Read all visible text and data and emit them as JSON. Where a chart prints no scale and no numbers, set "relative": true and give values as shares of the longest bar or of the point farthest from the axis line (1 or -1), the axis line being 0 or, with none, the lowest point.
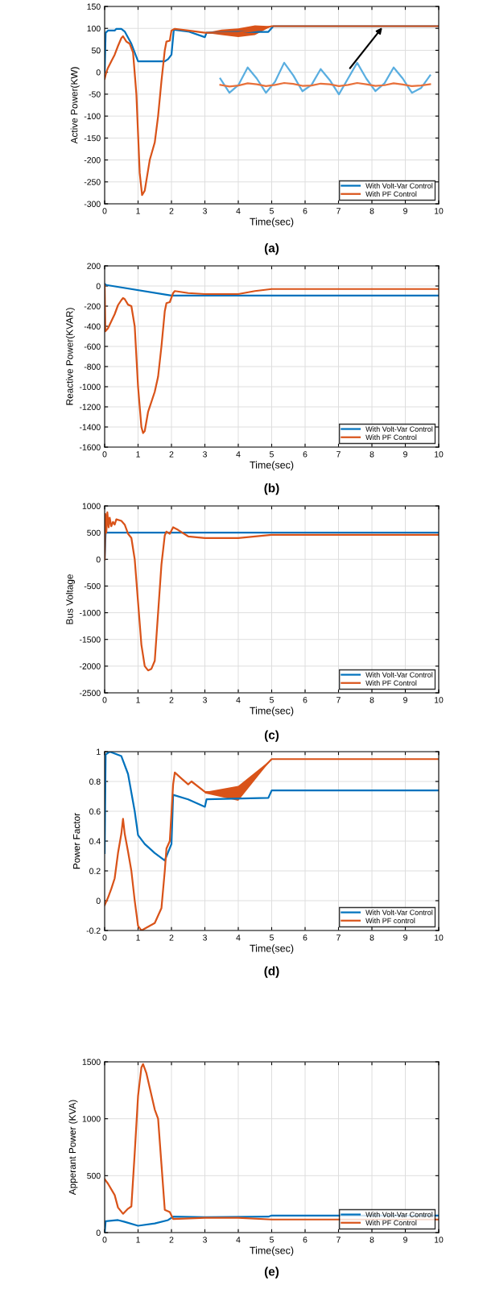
{
  "chart_data": [
    {
      "type": "line",
      "ylabel": "Active Power(KW)",
      "xlabel": "Time(sec)",
      "annotations": [
        "(a)"
      ],
      "xlim": [
        0,
        10
      ],
      "xticks": [
        0,
        1,
        2,
        3,
        4,
        5,
        6,
        7,
        8,
        9,
        10
      ],
      "ylim": [
        -300,
        150
      ],
      "yticks": [
        -300,
        -250,
        -200,
        -150,
        -100,
        -50,
        0,
        50,
        100,
        150
      ],
      "grid": true,
      "legend": "bottom right",
      "series": [
        {
          "name": "With Volt-Var Control",
          "color": "#0072bd",
          "x": [
            0,
            0.03,
            0.1,
            0.3,
            0.35,
            0.5,
            0.6,
            0.8,
            1.0,
            1.5,
            1.8,
            1.9,
            2.0,
            2.07,
            2.5,
            3.0,
            3.05,
            4.0,
            4.9,
            5.05,
            10
          ],
          "values": [
            0,
            90,
            95,
            95,
            99,
            99,
            93,
            65,
            25,
            25,
            25,
            30,
            40,
            97,
            93,
            80,
            90,
            92,
            92,
            105,
            105
          ]
        },
        {
          "name": "With PF Control",
          "color": "#d95319",
          "x": [
            0,
            0.05,
            0.1,
            0.2,
            0.3,
            0.4,
            0.5,
            0.55,
            0.65,
            0.75,
            0.85,
            0.95,
            1.05,
            1.12,
            1.2,
            1.35,
            1.5,
            1.6,
            1.7,
            1.8,
            1.85,
            1.95,
            2.0,
            2.1,
            2.5,
            3.0,
            3.5,
            4.0,
            4.5,
            5.0,
            10
          ],
          "values": [
            -15,
            0,
            10,
            25,
            40,
            60,
            78,
            82,
            70,
            65,
            45,
            -50,
            -230,
            -280,
            -270,
            -200,
            -160,
            -100,
            -20,
            50,
            70,
            72,
            95,
            99,
            95,
            90,
            90,
            90,
            95,
            105,
            105
          ],
          "lower": [
            null,
            null,
            null,
            null,
            null,
            null,
            null,
            null,
            null,
            null,
            null,
            null,
            null,
            null,
            null,
            null,
            null,
            null,
            null,
            null,
            null,
            null,
            null,
            null,
            null,
            90,
            85,
            80,
            85,
            105,
            null
          ],
          "upper": [
            null,
            null,
            null,
            null,
            null,
            null,
            null,
            null,
            null,
            null,
            null,
            null,
            null,
            null,
            null,
            null,
            null,
            null,
            null,
            null,
            null,
            null,
            null,
            null,
            null,
            90,
            97,
            100,
            107,
            105,
            null
          ]
        }
      ]
    },
    {
      "type": "line",
      "ylabel": "Reactive Power(KVAR)",
      "xlabel": "Time(sec)",
      "annotations": [
        "(b)"
      ],
      "xlim": [
        0,
        10
      ],
      "xticks": [
        0,
        1,
        2,
        3,
        4,
        5,
        6,
        7,
        8,
        9,
        10
      ],
      "ylim": [
        -1600,
        200
      ],
      "yticks": [
        -1600,
        -1400,
        -1200,
        -1000,
        -800,
        -600,
        -400,
        -200,
        0,
        200
      ],
      "grid": true,
      "legend": "bottom right",
      "series": [
        {
          "name": "With Volt-Var Control",
          "color": "#0072bd",
          "x": [
            0,
            0.05,
            2.0,
            10
          ],
          "values": [
            20,
            10,
            -95,
            -95
          ]
        },
        {
          "name": "With PF Control",
          "color": "#d95319",
          "x": [
            0,
            0.02,
            0.1,
            0.2,
            0.3,
            0.4,
            0.5,
            0.55,
            0.6,
            0.7,
            0.8,
            0.9,
            1.0,
            1.1,
            1.15,
            1.2,
            1.3,
            1.5,
            1.6,
            1.7,
            1.8,
            1.85,
            1.95,
            2.05,
            2.1,
            2.5,
            3.0,
            4.0,
            4.5,
            5.0,
            10
          ],
          "values": [
            10,
            -450,
            -420,
            -350,
            -280,
            -190,
            -140,
            -120,
            -130,
            -185,
            -200,
            -400,
            -1000,
            -1400,
            -1460,
            -1440,
            -1250,
            -1050,
            -900,
            -600,
            -250,
            -170,
            -160,
            -70,
            -50,
            -70,
            -80,
            -80,
            -50,
            -30,
            -30
          ]
        }
      ]
    },
    {
      "type": "line",
      "ylabel": "Bus Voltage",
      "xlabel": "Time(sec)",
      "annotations": [
        "(c)"
      ],
      "xlim": [
        0,
        10
      ],
      "xticks": [
        0,
        1,
        2,
        3,
        4,
        5,
        6,
        7,
        8,
        9,
        10
      ],
      "ylim": [
        -2500,
        1000
      ],
      "yticks": [
        -2500,
        -2000,
        -1500,
        -1000,
        -500,
        0,
        500,
        1000
      ],
      "grid": true,
      "legend": "bottom right",
      "series": [
        {
          "name": "With Volt-Var Control",
          "color": "#0072bd",
          "x": [
            0,
            0.03,
            10
          ],
          "values": [
            0,
            500,
            500
          ]
        },
        {
          "name": "With PF Control",
          "color": "#d95319",
          "x": [
            0,
            0.02,
            0.05,
            0.08,
            0.12,
            0.15,
            0.2,
            0.25,
            0.3,
            0.35,
            0.5,
            0.6,
            0.7,
            0.8,
            0.9,
            1.0,
            1.1,
            1.2,
            1.3,
            1.4,
            1.5,
            1.6,
            1.7,
            1.8,
            1.85,
            1.95,
            2.05,
            2.2,
            2.5,
            3,
            4,
            5,
            10
          ],
          "values": [
            0,
            850,
            500,
            880,
            600,
            780,
            620,
            700,
            650,
            750,
            720,
            650,
            480,
            400,
            0,
            -800,
            -1600,
            -2000,
            -2080,
            -2050,
            -1900,
            -1000,
            -100,
            450,
            520,
            480,
            600,
            550,
            430,
            400,
            400,
            460,
            460
          ]
        }
      ]
    },
    {
      "type": "line",
      "ylabel": "Power Factor",
      "xlabel": "Time(sec)",
      "annotations": [
        "(d)"
      ],
      "xlim": [
        0,
        10
      ],
      "xticks": [
        0,
        1,
        2,
        3,
        4,
        5,
        6,
        7,
        8,
        9,
        10
      ],
      "ylim": [
        -0.2,
        1
      ],
      "yticks": [
        -0.2,
        0,
        0.2,
        0.4,
        0.6,
        0.8,
        1
      ],
      "grid": true,
      "legend": "bottom right",
      "series": [
        {
          "name": "With Volt-Var Control",
          "color": "#0072bd",
          "x": [
            0,
            0.03,
            0.15,
            0.5,
            0.7,
            0.9,
            1.0,
            1.2,
            1.5,
            1.8,
            2.0,
            2.05,
            2.5,
            3.0,
            3.05,
            4.9,
            5.0,
            10
          ],
          "values": [
            0.32,
            0.98,
            1.0,
            0.97,
            0.85,
            0.6,
            0.44,
            0.38,
            0.32,
            0.27,
            0.38,
            0.71,
            0.68,
            0.63,
            0.68,
            0.69,
            0.74,
            0.74
          ]
        },
        {
          "name": "With PF control",
          "color": "#d95319",
          "x": [
            0,
            0.1,
            0.2,
            0.3,
            0.4,
            0.5,
            0.55,
            0.6,
            0.7,
            0.8,
            0.9,
            1.0,
            1.1,
            1.5,
            1.7,
            1.8,
            1.85,
            1.95,
            2.05,
            2.1,
            2.3,
            2.5,
            2.6,
            3.0,
            4.0,
            5.0,
            10
          ],
          "values": [
            -0.03,
            0.02,
            0.08,
            0.15,
            0.32,
            0.45,
            0.55,
            0.45,
            0.33,
            0.2,
            0.0,
            -0.17,
            -0.2,
            -0.15,
            -0.05,
            0.2,
            0.35,
            0.4,
            0.78,
            0.86,
            0.82,
            0.78,
            0.8,
            0.73,
            0.72,
            0.95,
            0.95
          ],
          "lower": [
            null,
            null,
            null,
            null,
            null,
            null,
            null,
            null,
            null,
            null,
            null,
            null,
            null,
            null,
            null,
            null,
            null,
            null,
            null,
            null,
            null,
            null,
            null,
            0.72,
            0.67,
            0.95,
            null
          ],
          "upper": [
            null,
            null,
            null,
            null,
            null,
            null,
            null,
            null,
            null,
            null,
            null,
            null,
            null,
            null,
            null,
            null,
            null,
            null,
            null,
            null,
            null,
            null,
            null,
            0.73,
            0.77,
            0.95,
            null
          ]
        }
      ]
    },
    {
      "type": "line",
      "ylabel": "Apperant Power (KVA)",
      "xlabel": "Time(sec)",
      "annotations": [
        "(e)"
      ],
      "xlim": [
        0,
        10
      ],
      "xticks": [
        0,
        1,
        2,
        3,
        4,
        5,
        6,
        7,
        8,
        9,
        10
      ],
      "ylim": [
        0,
        1500
      ],
      "yticks": [
        0,
        500,
        1000,
        1500
      ],
      "grid": true,
      "legend": "bottom right",
      "series": [
        {
          "name": "With Volt-Var Control",
          "color": "#0072bd",
          "x": [
            0,
            0.03,
            0.4,
            0.6,
            1.0,
            1.5,
            1.9,
            2.05,
            3,
            4.9,
            5.0,
            10
          ],
          "values": [
            0,
            100,
            110,
            95,
            60,
            80,
            110,
            140,
            135,
            140,
            150,
            150
          ]
        },
        {
          "name": "With PF Control",
          "color": "#d95319",
          "x": [
            0,
            0.1,
            0.3,
            0.4,
            0.55,
            0.7,
            0.8,
            0.9,
            1.0,
            1.1,
            1.15,
            1.25,
            1.5,
            1.6,
            1.7,
            1.8,
            1.95,
            2.05,
            3,
            4,
            5,
            10
          ],
          "values": [
            470,
            430,
            330,
            220,
            165,
            210,
            230,
            700,
            1200,
            1450,
            1480,
            1400,
            1080,
            1000,
            600,
            200,
            180,
            120,
            130,
            130,
            115,
            115
          ]
        }
      ]
    },
    {
      "type": "line",
      "relative": true,
      "categories": [
        null,
        null,
        null,
        null,
        null,
        null,
        null,
        null,
        null,
        null,
        null,
        null,
        null,
        null,
        null,
        null,
        null,
        null,
        null,
        null,
        null,
        null,
        null,
        null
      ],
      "series": [
        {
          "color": "#5aaee0",
          "values": [
            0.5,
            0.05,
            0.3,
            0.85,
            0.5,
            0.05,
            0.4,
            1,
            0.6,
            0.1,
            0.3,
            0.8,
            0.45,
            0.0,
            0.5,
            1,
            0.5,
            0.1,
            0.35,
            0.85,
            0.5,
            0.05,
            0.2,
            0.6
          ]
        },
        {
          "color": "#e8703a",
          "values": [
            0.3,
            0.25,
            0.28,
            0.35,
            0.32,
            0.26,
            0.3,
            0.36,
            0.33,
            0.27,
            0.28,
            0.34,
            0.32,
            0.26,
            0.3,
            0.36,
            0.32,
            0.27,
            0.29,
            0.35,
            0.31,
            0.26,
            0.28,
            0.32
          ]
        }
      ]
    }
  ]
}
